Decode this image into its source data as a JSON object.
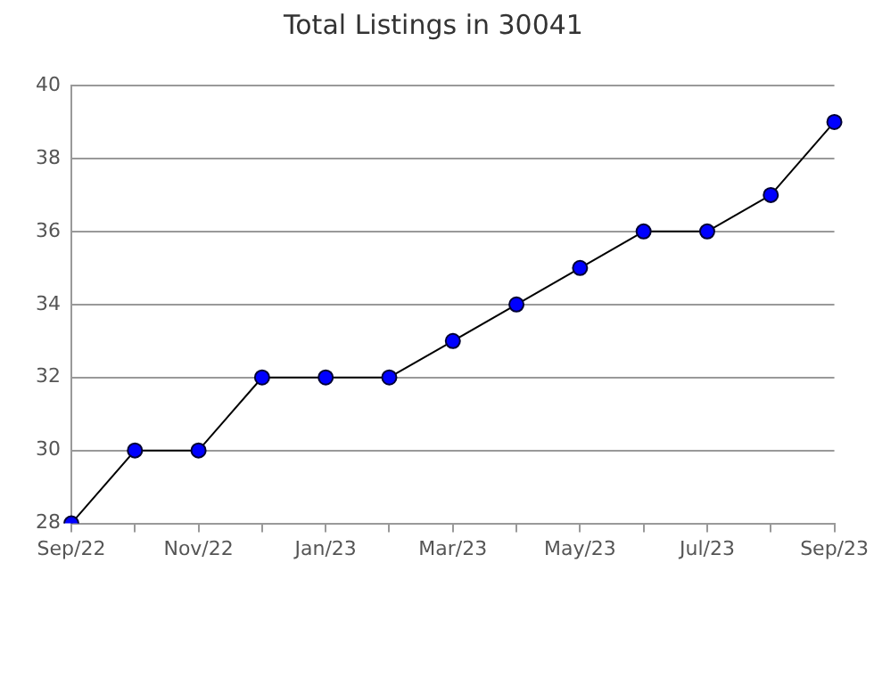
{
  "chart_data": {
    "type": "line",
    "title": "Total Listings in 30041",
    "categories": [
      "Sep/22",
      null,
      "Nov/22",
      null,
      "Jan/23",
      null,
      "Mar/23",
      null,
      "May/23",
      null,
      "Jul/23",
      null,
      "Sep/23"
    ],
    "series": [
      {
        "color": "#0000ff",
        "values": [
          28,
          30,
          30,
          32,
          32,
          32,
          33,
          34,
          35,
          36,
          36,
          37,
          39
        ]
      }
    ],
    "ylim": [
      28,
      40
    ],
    "yticks": [
      28,
      30,
      32,
      34,
      36,
      38,
      40
    ],
    "grid": "y",
    "legend": false,
    "marker": "circle",
    "line_style": "solid"
  }
}
